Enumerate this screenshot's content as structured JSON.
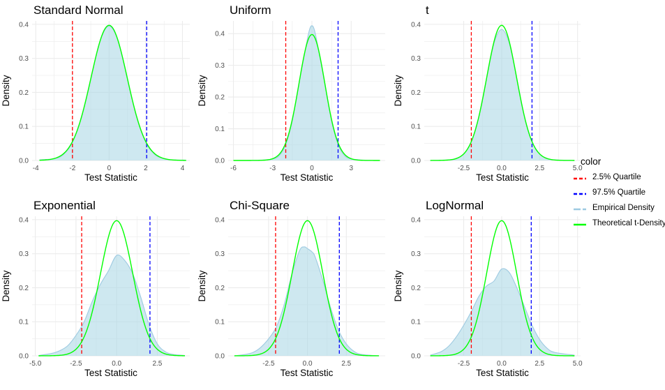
{
  "legend": {
    "title": "color",
    "items": [
      {
        "label": "2.5% Quartile",
        "color": "#ff0000",
        "style": "dashed"
      },
      {
        "label": "97.5% Quartile",
        "color": "#0000ff",
        "style": "dashed"
      },
      {
        "label": "Empirical Density",
        "color": "#9ecae1",
        "style": "dashed-light"
      },
      {
        "label": "Theoretical t-Density",
        "color": "#00ff00",
        "style": "solid"
      }
    ]
  },
  "colors": {
    "q025": "#ff0000",
    "q975": "#0000ff",
    "empirical_fill": "#add8e6",
    "empirical_line": "#9ecae1",
    "theoretical": "#00ff00",
    "grid": "#ebebeb"
  },
  "chart_data": [
    {
      "type": "area",
      "title": "Standard Normal",
      "xlabel": "Test Statistic",
      "ylabel": "Density",
      "xlim": [
        -4.2,
        4.4
      ],
      "ylim": [
        0,
        0.41
      ],
      "xticks": [
        -4,
        -2,
        0,
        2,
        4
      ],
      "xtick_labels": [
        "-4",
        "-2",
        "0",
        "2",
        "4"
      ],
      "yticks": [
        0.0,
        0.1,
        0.2,
        0.3,
        0.4
      ],
      "ytick_labels": [
        "0.0",
        "0.1",
        "0.2",
        "0.3",
        "0.4"
      ],
      "grid": true,
      "q025": -2.0,
      "q975": 2.05,
      "theoretical": {
        "x_range": [
          -3.8,
          4.2
        ],
        "df": 60
      },
      "empirical": {
        "x": [
          -3.8,
          -3.0,
          -2.5,
          -2.0,
          -1.5,
          -1.0,
          -0.5,
          0.0,
          0.5,
          1.0,
          1.5,
          2.0,
          2.5,
          3.0,
          3.5,
          4.2
        ],
        "y": [
          0.002,
          0.005,
          0.017,
          0.053,
          0.128,
          0.24,
          0.35,
          0.395,
          0.35,
          0.24,
          0.128,
          0.053,
          0.017,
          0.005,
          0.002,
          0.001
        ]
      }
    },
    {
      "type": "area",
      "title": "Uniform",
      "xlabel": "Test Statistic",
      "ylabel": "Density",
      "xlim": [
        -6.4,
        5.6
      ],
      "ylim": [
        0,
        0.44
      ],
      "xticks": [
        -6,
        -3,
        0,
        3
      ],
      "xtick_labels": [
        "-6",
        "-3",
        "0",
        "3"
      ],
      "yticks": [
        0.0,
        0.1,
        0.2,
        0.3,
        0.4
      ],
      "ytick_labels": [
        "0.0",
        "0.1",
        "0.2",
        "0.3",
        "0.4"
      ],
      "grid": true,
      "q025": -2.0,
      "q975": 2.0,
      "theoretical": {
        "x_range": [
          -6.0,
          5.2
        ],
        "df": 60
      },
      "empirical": {
        "x": [
          -6.0,
          -4.0,
          -3.0,
          -2.5,
          -2.0,
          -1.5,
          -1.0,
          -0.5,
          -0.2,
          0.0,
          0.2,
          0.5,
          1.0,
          1.5,
          2.0,
          2.5,
          3.0,
          4.0,
          5.2
        ],
        "y": [
          0.0,
          0.001,
          0.005,
          0.015,
          0.05,
          0.125,
          0.24,
          0.35,
          0.41,
          0.425,
          0.41,
          0.35,
          0.24,
          0.125,
          0.05,
          0.015,
          0.005,
          0.001,
          0.0
        ]
      }
    },
    {
      "type": "area",
      "title": "t",
      "xlabel": "Test Statistic",
      "ylabel": "Density",
      "xlim": [
        -5.1,
        5.2
      ],
      "ylim": [
        0,
        0.41
      ],
      "xticks": [
        -2.5,
        0.0,
        2.5,
        5.0
      ],
      "xtick_labels": [
        "-2.5",
        "0.0",
        "2.5",
        "5.0"
      ],
      "yticks": [
        0.0,
        0.1,
        0.2,
        0.3,
        0.4
      ],
      "ytick_labels": [
        "0.0",
        "0.1",
        "0.2",
        "0.3",
        "0.4"
      ],
      "grid": true,
      "q025": -2.0,
      "q975": 2.0,
      "theoretical": {
        "x_range": [
          -4.7,
          4.8
        ],
        "df": 60
      },
      "empirical": {
        "x": [
          -4.7,
          -3.5,
          -3.0,
          -2.5,
          -2.0,
          -1.5,
          -1.0,
          -0.5,
          0.0,
          0.5,
          1.0,
          1.5,
          2.0,
          2.5,
          3.0,
          3.5,
          4.8
        ],
        "y": [
          0.0,
          0.002,
          0.006,
          0.019,
          0.056,
          0.13,
          0.24,
          0.345,
          0.385,
          0.345,
          0.24,
          0.13,
          0.056,
          0.019,
          0.006,
          0.002,
          0.0
        ]
      }
    },
    {
      "type": "area",
      "title": "Exponential",
      "xlabel": "Test Statistic",
      "ylabel": "Density",
      "xlim": [
        -5.2,
        4.5
      ],
      "ylim": [
        0,
        0.41
      ],
      "xticks": [
        -5.0,
        -2.5,
        0.0,
        2.5
      ],
      "xtick_labels": [
        "-5.0",
        "-2.5",
        "0.0",
        "2.5"
      ],
      "yticks": [
        0.0,
        0.1,
        0.2,
        0.3,
        0.4
      ],
      "ytick_labels": [
        "0.0",
        "0.1",
        "0.2",
        "0.3",
        "0.4"
      ],
      "grid": true,
      "q025": -2.15,
      "q975": 2.05,
      "theoretical": {
        "x_range": [
          -4.8,
          4.2
        ],
        "df": 60
      },
      "empirical": {
        "x": [
          -4.8,
          -4.0,
          -3.5,
          -3.0,
          -2.5,
          -2.0,
          -1.5,
          -1.0,
          -0.5,
          0.0,
          0.5,
          1.0,
          1.5,
          2.0,
          2.5,
          3.0,
          3.5,
          4.2
        ],
        "y": [
          0.001,
          0.007,
          0.015,
          0.03,
          0.06,
          0.1,
          0.16,
          0.21,
          0.25,
          0.295,
          0.28,
          0.24,
          0.17,
          0.09,
          0.035,
          0.012,
          0.004,
          0.001
        ]
      }
    },
    {
      "type": "area",
      "title": "Chi-Square",
      "xlabel": "Test Statistic",
      "ylabel": "Density",
      "xlim": [
        -5.1,
        5.0
      ],
      "ylim": [
        0,
        0.41
      ],
      "xticks": [
        -2.5,
        0.0,
        2.5
      ],
      "xtick_labels": [
        "-2.5",
        "0.0",
        "2.5"
      ],
      "yticks": [
        0.0,
        0.1,
        0.2,
        0.3,
        0.4
      ],
      "ytick_labels": [
        "0.0",
        "0.1",
        "0.2",
        "0.3",
        "0.4"
      ],
      "grid": true,
      "q025": -2.05,
      "q975": 2.05,
      "theoretical": {
        "x_range": [
          -4.7,
          4.6
        ],
        "df": 60
      },
      "empirical": {
        "x": [
          -4.7,
          -4.0,
          -3.5,
          -3.0,
          -2.5,
          -2.0,
          -1.5,
          -1.0,
          -0.5,
          -0.2,
          0.0,
          0.3,
          0.5,
          1.0,
          1.5,
          2.0,
          2.5,
          3.0,
          3.5,
          4.6
        ],
        "y": [
          0.0,
          0.004,
          0.01,
          0.025,
          0.05,
          0.085,
          0.15,
          0.24,
          0.31,
          0.32,
          0.315,
          0.305,
          0.29,
          0.22,
          0.14,
          0.075,
          0.035,
          0.013,
          0.004,
          0.0
        ]
      }
    },
    {
      "type": "area",
      "title": "LogNormal",
      "xlabel": "Test Statistic",
      "ylabel": "Density",
      "xlim": [
        -5.1,
        5.2
      ],
      "ylim": [
        0,
        0.41
      ],
      "xticks": [
        -2.5,
        0.0,
        2.5,
        5.0
      ],
      "xtick_labels": [
        "-2.5",
        "0.0",
        "2.5",
        "5.0"
      ],
      "yticks": [
        0.0,
        0.1,
        0.2,
        0.3,
        0.4
      ],
      "ytick_labels": [
        "0.0",
        "0.1",
        "0.2",
        "0.3",
        "0.4"
      ],
      "grid": true,
      "q025": -2.0,
      "q975": 1.95,
      "theoretical": {
        "x_range": [
          -4.7,
          4.8
        ],
        "df": 60
      },
      "empirical": {
        "x": [
          -4.7,
          -4.0,
          -3.5,
          -3.0,
          -2.5,
          -2.0,
          -1.5,
          -1.0,
          -0.5,
          0.0,
          0.5,
          1.0,
          1.5,
          2.0,
          2.5,
          3.0,
          3.5,
          4.8
        ],
        "y": [
          0.002,
          0.012,
          0.028,
          0.055,
          0.09,
          0.13,
          0.175,
          0.205,
          0.22,
          0.255,
          0.245,
          0.2,
          0.145,
          0.09,
          0.048,
          0.022,
          0.01,
          0.002
        ]
      }
    }
  ]
}
